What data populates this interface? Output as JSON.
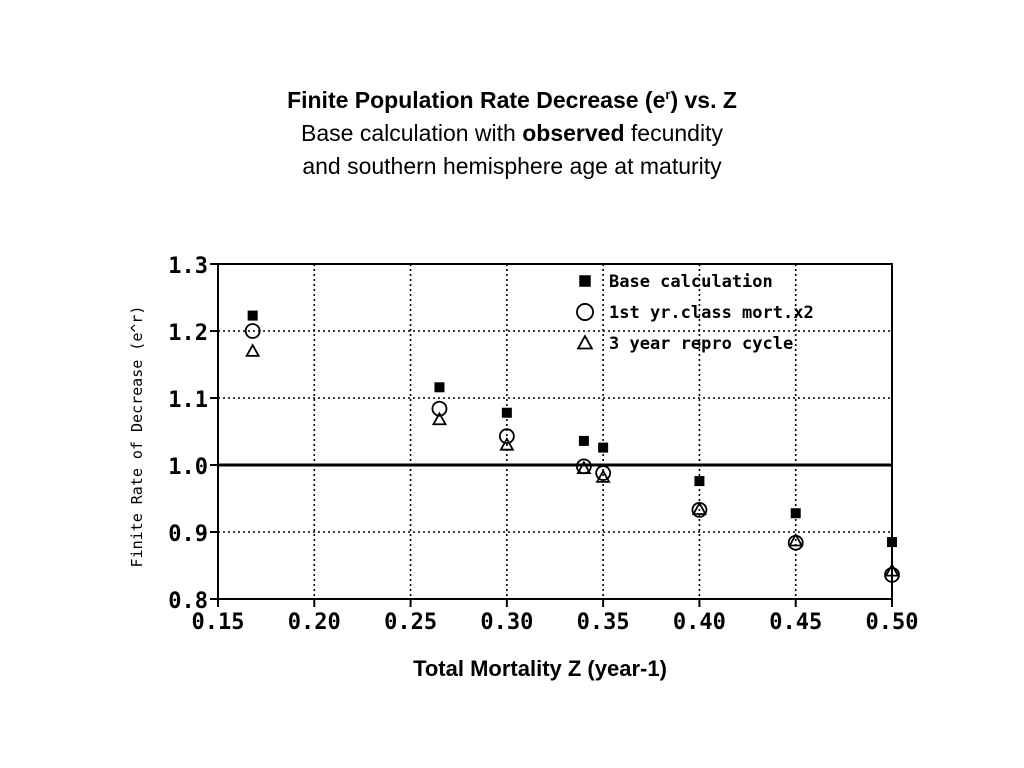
{
  "slide": {
    "title_main": "Finite Population Rate Decrease (e",
    "title_sup": "r",
    "title_end": ") vs. Z",
    "line2_pre": "Base calculation with ",
    "line2_bold": "observed",
    "line2_post": " fecundity",
    "line3": "and southern hemisphere age at maturity"
  },
  "chart_data": {
    "type": "scatter",
    "title": "",
    "xlabel": "Total Mortality Z (year-1)",
    "ylabel": "Finite Rate of Decrease (e^r)",
    "xlim": [
      0.15,
      0.5
    ],
    "ylim": [
      0.8,
      1.3
    ],
    "x_ticks": [
      "0.15",
      "0.20",
      "0.25",
      "0.30",
      "0.35",
      "0.40",
      "0.45",
      "0.50"
    ],
    "y_ticks": [
      "0.8",
      "0.9",
      "1.0",
      "1.1",
      "1.2",
      "1.3"
    ],
    "grid": true,
    "legend_position": "top-right",
    "reference_line": 1.0,
    "series": [
      {
        "name": "Base calculation",
        "marker": "filled-square",
        "points": [
          [
            0.168,
            1.223
          ],
          [
            0.265,
            1.116
          ],
          [
            0.3,
            1.078
          ],
          [
            0.34,
            1.036
          ],
          [
            0.35,
            1.026
          ],
          [
            0.4,
            0.976
          ],
          [
            0.45,
            0.928
          ],
          [
            0.5,
            0.885
          ]
        ]
      },
      {
        "name": "1st yr.class mort.x2",
        "marker": "open-circle",
        "points": [
          [
            0.168,
            1.2
          ],
          [
            0.265,
            1.084
          ],
          [
            0.3,
            1.043
          ],
          [
            0.34,
            0.998
          ],
          [
            0.35,
            0.988
          ],
          [
            0.4,
            0.933
          ],
          [
            0.45,
            0.884
          ],
          [
            0.5,
            0.836
          ]
        ]
      },
      {
        "name": "3 year repro cycle",
        "marker": "open-triangle",
        "points": [
          [
            0.168,
            1.17
          ],
          [
            0.265,
            1.068
          ],
          [
            0.3,
            1.03
          ],
          [
            0.34,
            0.995
          ],
          [
            0.35,
            0.982
          ],
          [
            0.4,
            0.934
          ],
          [
            0.45,
            0.887
          ],
          [
            0.5,
            0.842
          ]
        ]
      }
    ]
  }
}
